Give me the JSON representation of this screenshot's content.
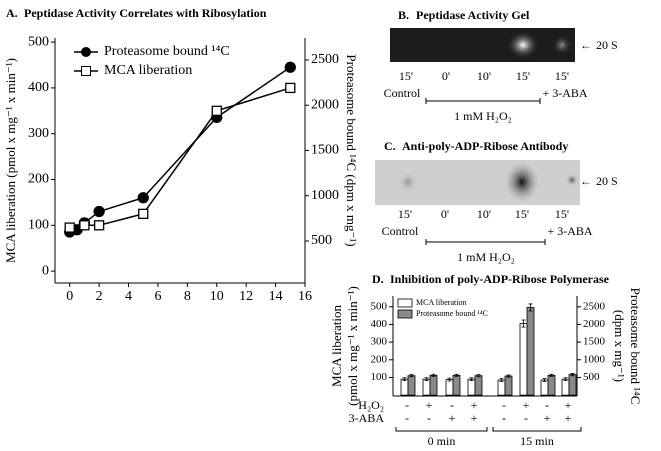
{
  "chart_data": [
    {
      "type": "line",
      "panel": "A.",
      "title": "Peptidase Activity Correlates with Ribosylation",
      "ylabel": "MCA liberation (pmol x mg⁻¹ x min⁻¹)",
      "y2label": "Proteasome bound ¹⁴C (dpm x mg⁻¹)",
      "xlim": [
        -1,
        16
      ],
      "xticks": [
        0,
        2,
        4,
        6,
        8,
        10,
        12,
        14,
        16
      ],
      "ylim": [
        -26,
        509
      ],
      "yticks": [
        0,
        100,
        200,
        300,
        400,
        500
      ],
      "y2lim": [
        36,
        2743
      ],
      "y2ticks": [
        500,
        1000,
        1500,
        2000,
        2500
      ],
      "series": [
        {
          "name": "Proteasome bound ¹⁴C",
          "color": "#000000",
          "marker": "circle",
          "axis": "y2",
          "x": [
            0,
            0.5,
            1,
            2,
            5,
            10,
            15
          ],
          "values": [
            600,
            624,
            700,
            826,
            978,
            1866,
            2420
          ]
        },
        {
          "name": "MCA liberation",
          "color": "#000000",
          "marker": "square",
          "x": [
            0,
            1,
            2,
            5,
            10,
            15
          ],
          "values": [
            95,
            100,
            100,
            125,
            350,
            400
          ]
        }
      ]
    },
    {
      "type": "bar",
      "panel": "D.",
      "title": "Inhibition of poly-ADP-Ribose Polymerase",
      "ylabel": [
        "MCA liberation",
        "(pmol x mg⁻¹ x min⁻¹)"
      ],
      "y2label": [
        "Proteasome bound ¹⁴C",
        "(dpm x mg⁻¹)"
      ],
      "ylim": [
        -5,
        561
      ],
      "yticks": [
        100,
        200,
        300,
        400,
        500
      ],
      "y2lim": [
        -25,
        2805
      ],
      "y2ticks": [
        500,
        1000,
        1500,
        2000,
        2500
      ],
      "series": [
        {
          "name": "MCA liberation",
          "color": "#ffffff",
          "values": [
            90,
            90,
            88,
            90,
            85,
            405,
            85,
            90
          ],
          "errors": [
            8,
            8,
            8,
            8,
            8,
            20,
            8,
            8
          ]
        },
        {
          "name": "Proteasome bound ¹⁴C",
          "color": "#8a8a8a",
          "axis": "y2",
          "values": [
            550,
            560,
            560,
            550,
            540,
            2480,
            560,
            580
          ],
          "errors": [
            30,
            30,
            30,
            30,
            30,
            100,
            30,
            30
          ]
        }
      ],
      "treatments": [
        {
          "label": "H₂O₂",
          "signs": [
            "-",
            "+",
            "-",
            "+",
            "-",
            "+",
            "-",
            "+"
          ]
        },
        {
          "label": "3-ABA",
          "signs": [
            "-",
            "-",
            "+",
            "+",
            "-",
            "-",
            "+",
            "+"
          ]
        }
      ],
      "groups": [
        "0 min",
        "15 min"
      ]
    }
  ],
  "gels": [
    {
      "panel": "B.",
      "title": "Peptidase Activity Gel",
      "band": "20 S",
      "lanes": [
        "15'",
        "0'",
        "10'",
        "15'",
        "15'"
      ],
      "control": "Control",
      "inhibitor": "+ 3-ABA",
      "treatment": "1 mM H₂O₂"
    },
    {
      "panel": "C.",
      "title": "Anti-poly-ADP-Ribose Antibody",
      "band": "20 S",
      "lanes": [
        "15'",
        "0'",
        "10'",
        "15'",
        "15'"
      ],
      "control": "Control",
      "inhibitor": "+ 3-ABA",
      "treatment": "1 mM H₂O₂"
    }
  ]
}
